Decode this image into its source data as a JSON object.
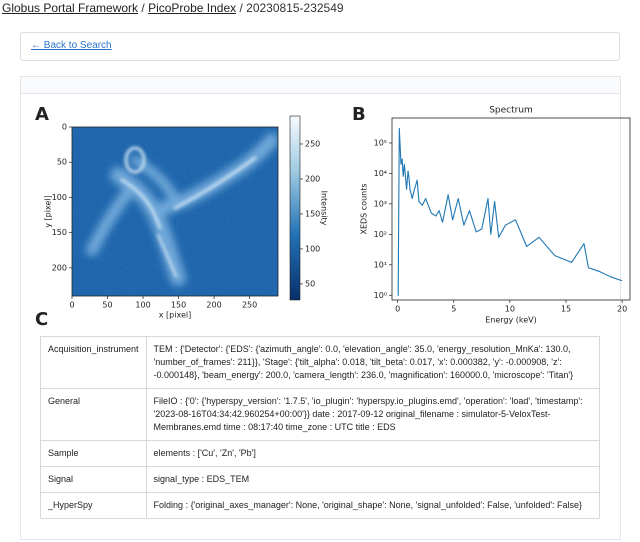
{
  "breadcrumb": [
    "Globus Portal Framework",
    "PicoProbe Index",
    "20230815-232549"
  ],
  "back_link": "Back to Search",
  "panel_labels": [
    "A",
    "B",
    "C"
  ],
  "chart_data": [
    {
      "type": "image",
      "xlabel": "x [pixel]",
      "ylabel": "y [pixel]",
      "xlim": [
        0,
        290
      ],
      "ylim": [
        0,
        240
      ],
      "xticks": [
        0,
        50,
        100,
        150,
        200,
        250
      ],
      "yticks": [
        0,
        50,
        100,
        150,
        200
      ],
      "colorbar": {
        "label": "Intensity",
        "lim": [
          27,
          290
        ],
        "ticks": [
          50,
          100,
          150,
          200,
          250
        ]
      }
    },
    {
      "type": "line",
      "title": "Spectrum",
      "xlabel": "Energy (keV)",
      "ylabel": "XEDS counts",
      "log_y": true,
      "x": [
        0,
        0.05,
        0.15,
        0.3,
        0.4,
        0.5,
        0.6,
        0.8,
        0.93,
        1.0,
        1.1,
        1.3,
        1.5,
        1.74,
        1.9,
        2.2,
        2.5,
        3.0,
        3.4,
        3.7,
        4.0,
        4.5,
        4.9,
        5.4,
        5.9,
        6.4,
        7.0,
        7.5,
        8.05,
        8.3,
        8.64,
        9.0,
        9.6,
        10.5,
        11.5,
        12.6,
        14.0,
        15.5,
        16.6,
        17.0,
        18.0,
        19.0,
        20.0
      ],
      "series": [
        {
          "color": "#1f77b4",
          "values": [
            1,
            1,
            300000,
            20000,
            30000,
            8000,
            20000,
            3000,
            12000,
            8000,
            3000,
            1500,
            3000,
            6000,
            1200,
            900,
            1500,
            500,
            400,
            600,
            250,
            2000,
            300,
            1500,
            200,
            600,
            120,
            150,
            1500,
            100,
            1200,
            80,
            200,
            300,
            40,
            80,
            20,
            12,
            50,
            8,
            6,
            4,
            3
          ]
        }
      ],
      "xlim": [
        -0.5,
        20.7
      ],
      "ylim": [
        0.7,
        660000
      ],
      "xticks": [
        0,
        5,
        10,
        15,
        20
      ],
      "yticks": [
        {
          "value": 1,
          "label": "10⁰"
        },
        {
          "value": 10,
          "label": "10¹"
        },
        {
          "value": 100,
          "label": "10²"
        },
        {
          "value": 1000,
          "label": "10³"
        },
        {
          "value": 10000,
          "label": "10⁴"
        },
        {
          "value": 100000,
          "label": "10⁵"
        }
      ]
    }
  ],
  "table": {
    "rows": [
      [
        "Acquisition_instrument",
        "TEM : {'Detector': {'EDS': {'azimuth_angle': 0.0, 'elevation_angle': 35.0, 'energy_resolution_MnKa': 130.0, 'number_of_frames': 211}}, 'Stage': {'tilt_alpha': 0.018, 'tilt_beta': 0.017, 'x': 0.000382, 'y': -0.000908, 'z': -0.000148}, 'beam_energy': 200.0, 'camera_length': 236.0, 'magnification': 160000.0, 'microscope': 'Titan'}"
      ],
      [
        "General",
        "FileIO : {'0': {'hyperspy_version': '1.7.5', 'io_plugin': 'hyperspy.io_plugins.emd', 'operation': 'load', 'timestamp': '2023-08-16T04:34:42.960254+00:00'}} date : 2017-09-12 original_filename : simulator-5-VeloxTest-Membranes.emd time : 08:17:40 time_zone : UTC title : EDS"
      ],
      [
        "Sample",
        "elements : ['Cu', 'Zn', 'Pb']"
      ],
      [
        "Signal",
        "signal_type : EDS_TEM"
      ],
      [
        "_HyperSpy",
        "Folding : {'original_axes_manager': None, 'original_shape': None, 'signal_unfolded': False, 'unfolded': False}"
      ]
    ]
  }
}
